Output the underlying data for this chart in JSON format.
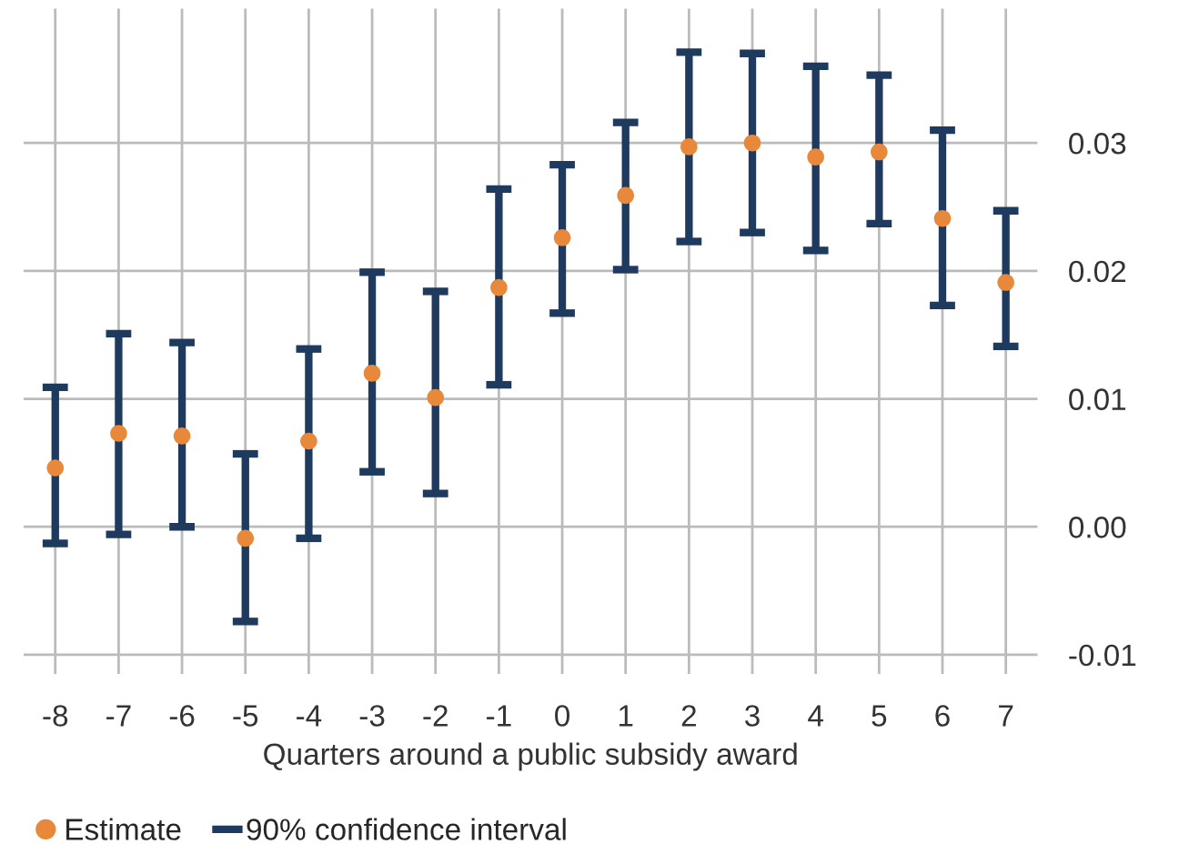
{
  "chart_data": {
    "type": "scatter",
    "xlabel": "Quarters around a public subsidy award",
    "categories": [
      "-8",
      "-7",
      "-6",
      "-5",
      "-4",
      "-3",
      "-2",
      "-1",
      "0",
      "1",
      "2",
      "3",
      "4",
      "5",
      "6",
      "7"
    ],
    "series": [
      {
        "name": "Estimate",
        "color": "#e8883a",
        "marker": "circle",
        "values": [
          0.0046,
          0.0073,
          0.0071,
          -0.0009,
          0.0067,
          0.012,
          0.0101,
          0.0187,
          0.0226,
          0.0259,
          0.0297,
          0.03,
          0.0289,
          0.0293,
          0.0241,
          0.0191
        ],
        "errors": [
          [
            -0.0013,
            0.0109
          ],
          [
            -0.0006,
            0.0151
          ],
          [
            0.0,
            0.0144
          ],
          [
            -0.0074,
            0.0057
          ],
          [
            -0.0009,
            0.0139
          ],
          [
            0.0043,
            0.0199
          ],
          [
            0.0026,
            0.0184
          ],
          [
            0.0111,
            0.0264
          ],
          [
            0.0167,
            0.0283
          ],
          [
            0.0201,
            0.0316
          ],
          [
            0.0223,
            0.0371
          ],
          [
            0.023,
            0.037
          ],
          [
            0.0216,
            0.036
          ],
          [
            0.0237,
            0.0353
          ],
          [
            0.0173,
            0.031
          ],
          [
            0.0141,
            0.0247
          ]
        ]
      }
    ],
    "annotations": [
      "90% confidence interval"
    ],
    "ylim": [
      -0.0115,
      0.0405
    ],
    "yticks": [
      {
        "value": -0.01,
        "label": "-0.01"
      },
      {
        "value": 0,
        "label": "0.00"
      },
      {
        "value": 0.01,
        "label": "0.01"
      },
      {
        "value": 0.02,
        "label": "0.02"
      },
      {
        "value": 0.03,
        "label": "0.03"
      }
    ],
    "grid": true,
    "legend": "bottom left"
  }
}
